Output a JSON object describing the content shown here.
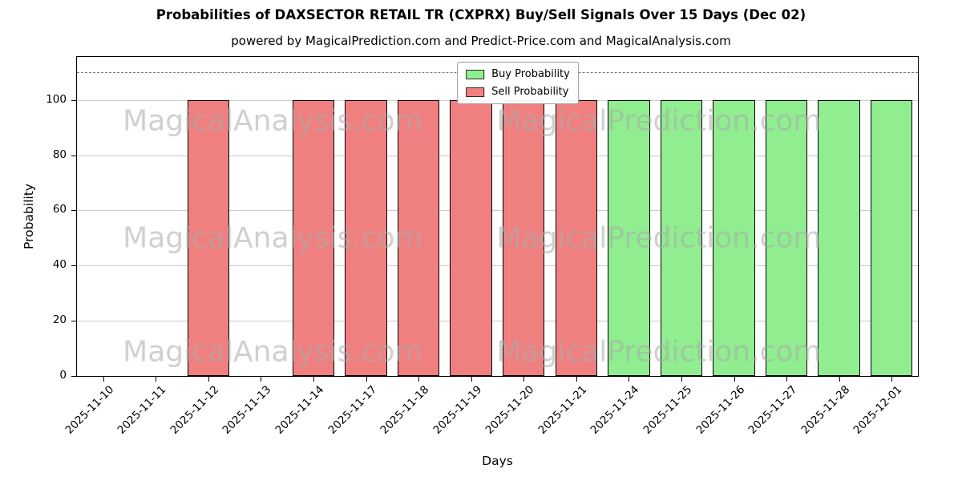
{
  "chart_data": {
    "type": "bar",
    "title": "Probabilities of DAXSECTOR RETAIL TR (CXPRX) Buy/Sell Signals Over 15 Days (Dec 02)",
    "subtitle": "powered by MagicalPrediction.com and Predict-Price.com and MagicalAnalysis.com",
    "xlabel": "Days",
    "ylabel": "Probability",
    "ylim": [
      0,
      115.6
    ],
    "yticks": [
      0,
      20,
      40,
      60,
      80,
      100
    ],
    "dashed_guideline_y": 110,
    "grid": true,
    "bar_edge_color": "#000000",
    "categories": [
      "2025-11-10",
      "2025-11-11",
      "2025-11-12",
      "2025-11-13",
      "2025-11-14",
      "2025-11-17",
      "2025-11-18",
      "2025-11-19",
      "2025-11-20",
      "2025-11-21",
      "2025-11-24",
      "2025-11-25",
      "2025-11-26",
      "2025-11-27",
      "2025-11-28",
      "2025-12-01"
    ],
    "series": [
      {
        "name": "Buy Probability",
        "color": "#90ee90",
        "values": [
          0,
          0,
          0,
          0,
          0,
          0,
          0,
          0,
          0,
          0,
          100,
          100,
          100,
          100,
          100,
          100
        ]
      },
      {
        "name": "Sell Probability",
        "color": "#f08080",
        "values": [
          0,
          0,
          100,
          0,
          100,
          100,
          100,
          100,
          100,
          100,
          0,
          0,
          0,
          0,
          0,
          0
        ]
      }
    ],
    "legend": {
      "position": "upper center",
      "entries": [
        {
          "label": "Buy Probability",
          "color": "#90ee90"
        },
        {
          "label": "Sell Probability",
          "color": "#f08080"
        }
      ]
    },
    "watermarks": {
      "left_text": "MagicalAnalysis.com",
      "right_text": "MagicalPrediction.com",
      "color": "#bebebe"
    }
  }
}
